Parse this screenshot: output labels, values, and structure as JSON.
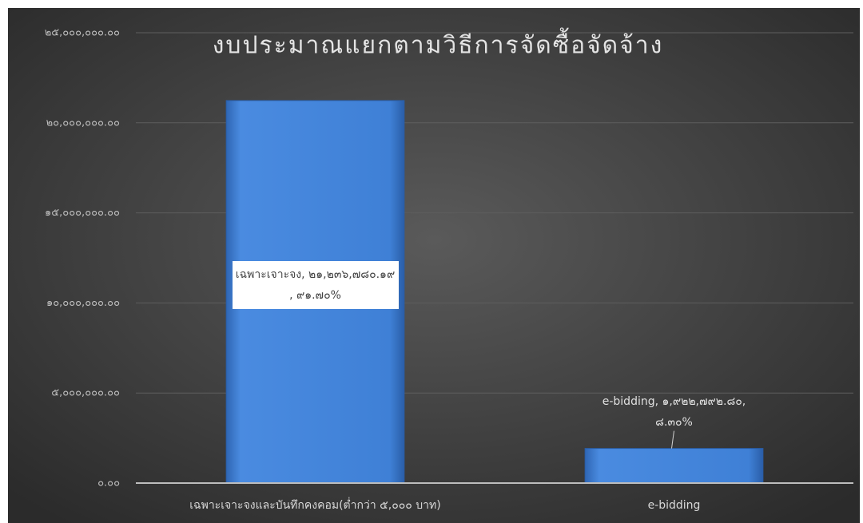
{
  "chart_data": {
    "type": "bar",
    "title": "งบประมาณแยกตามวิธีการจัดซื้อจัดจ้าง",
    "categories": [
      "เฉพาะเจาะจงและบันทึกคงคอม(ต่ำกว่า ๕,๐๐๐ บาท)",
      "e-bidding"
    ],
    "values": [
      21236780.19,
      1922792.8
    ],
    "value_labels": [
      "เฉพาะเจาะจง, ๒๑,๒๓๖,๗๘๐.๑๙ , ๙๑.๗๐%",
      "e-bidding, ๑,๙๒๒,๗๙๒.๘๐, ๘.๓๐%"
    ],
    "color": "#3f7fd4",
    "ylim": [
      0,
      25000000
    ],
    "yticks": [
      {
        "value": 0,
        "label": "๐.๐๐"
      },
      {
        "value": 5000000,
        "label": "๕,๐๐๐,๐๐๐.๐๐"
      },
      {
        "value": 10000000,
        "label": "๑๐,๐๐๐,๐๐๐.๐๐"
      },
      {
        "value": 15000000,
        "label": "๑๕,๐๐๐,๐๐๐.๐๐"
      },
      {
        "value": 20000000,
        "label": "๒๐,๐๐๐,๐๐๐.๐๐"
      },
      {
        "value": 25000000,
        "label": "๒๕,๐๐๐,๐๐๐.๐๐"
      }
    ],
    "grid": true
  }
}
